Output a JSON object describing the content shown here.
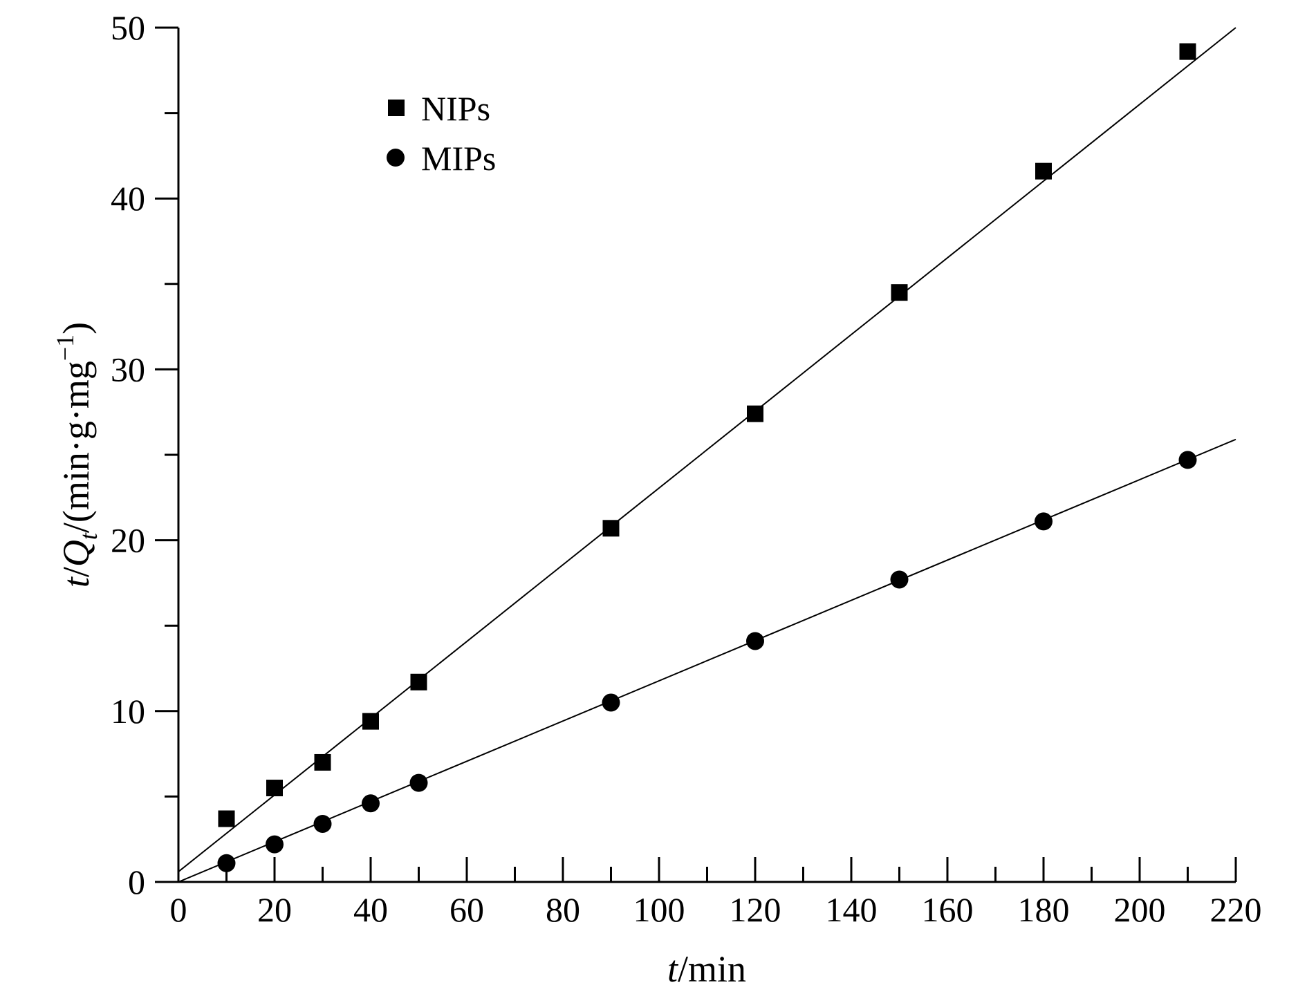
{
  "chart_data": {
    "type": "scatter",
    "xlabel": "t/min",
    "ylabel": "t/Qt/(min·g·mg−1)",
    "xlim": [
      0,
      220
    ],
    "ylim": [
      0,
      50
    ],
    "x_ticks": [
      "0",
      "20",
      "40",
      "60",
      "80",
      "100",
      "120",
      "140",
      "160",
      "180",
      "200",
      "220"
    ],
    "y_ticks": [
      "0",
      "10",
      "20",
      "30",
      "40",
      "50"
    ],
    "legend_position": "top-left",
    "grid": false,
    "series": [
      {
        "name": "NIPs",
        "marker": "square",
        "x": [
          10,
          20,
          30,
          40,
          50,
          90,
          120,
          150,
          180,
          210
        ],
        "y": [
          3.7,
          5.5,
          7.0,
          9.4,
          11.7,
          20.7,
          27.4,
          34.5,
          41.6,
          48.6
        ],
        "fit_line": {
          "x": [
            0,
            220
          ],
          "y": [
            0.6,
            50.0
          ]
        }
      },
      {
        "name": "MIPs",
        "marker": "circle",
        "x": [
          10,
          20,
          30,
          40,
          50,
          90,
          120,
          150,
          180,
          210
        ],
        "y": [
          1.1,
          2.2,
          3.4,
          4.6,
          5.8,
          10.5,
          14.1,
          17.7,
          21.1,
          24.7
        ],
        "fit_line": {
          "x": [
            0,
            220
          ],
          "y": [
            0.0,
            25.9
          ]
        }
      }
    ],
    "colors": {
      "axis": "#000000",
      "marker": "#000000",
      "line": "#000000"
    }
  }
}
